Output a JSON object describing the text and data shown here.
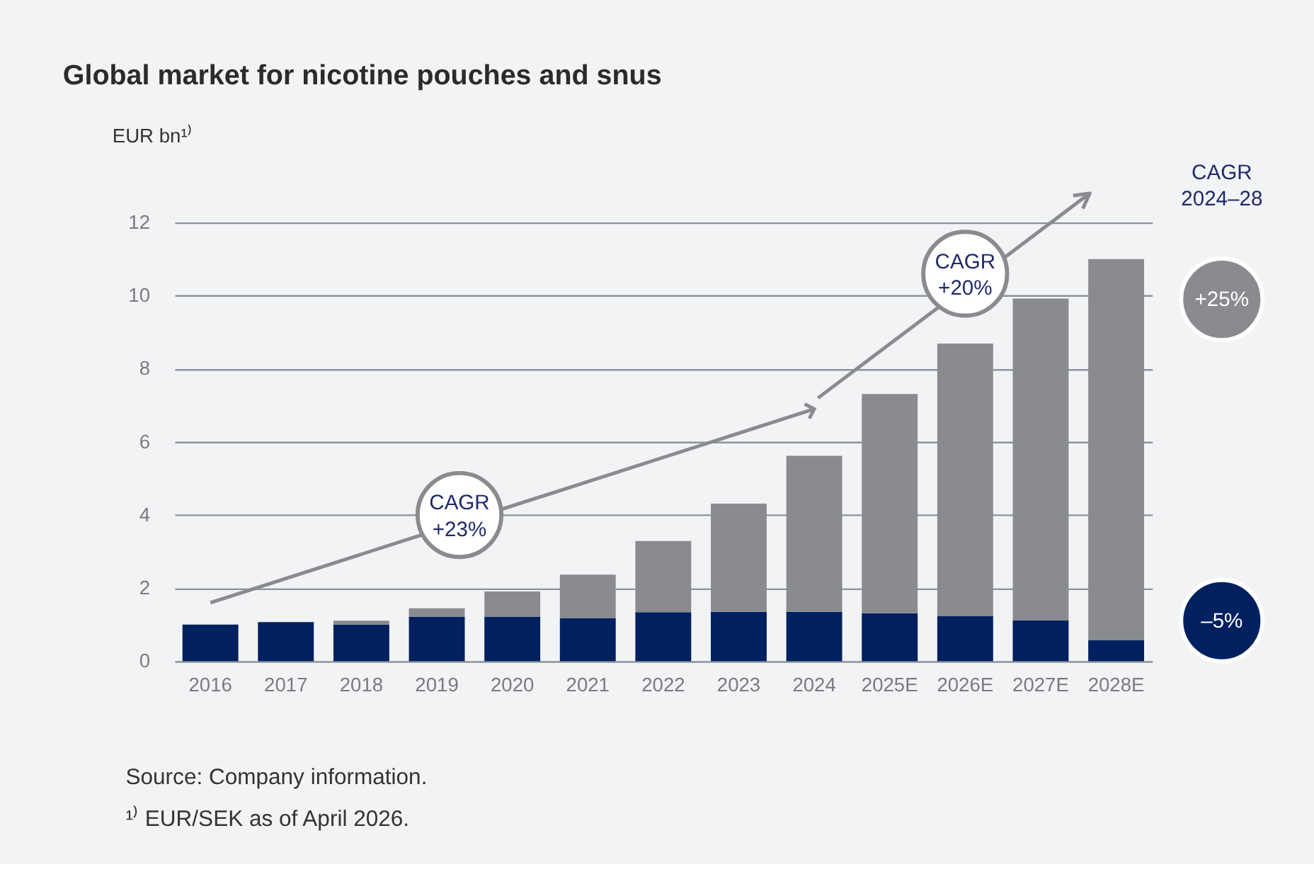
{
  "chart_data": {
    "type": "bar",
    "stacked": true,
    "title": "Global market for nicotine pouches and snus",
    "ylabel": "EUR bn¹⁾",
    "categories": [
      "2016",
      "2017",
      "2018",
      "2019",
      "2020",
      "2021",
      "2022",
      "2023",
      "2024",
      "2025E",
      "2026E",
      "2027E",
      "2028E"
    ],
    "series": [
      {
        "color": "#00205f",
        "values": [
          1.0,
          1.07,
          1.0,
          1.22,
          1.22,
          1.18,
          1.34,
          1.35,
          1.35,
          1.31,
          1.23,
          1.12,
          0.58
        ]
      },
      {
        "color": "#8a8b8e",
        "values": [
          null,
          null,
          0.11,
          0.23,
          0.69,
          1.19,
          1.95,
          2.96,
          4.27,
          6.0,
          7.46,
          8.8,
          10.42
        ]
      },
      {
        "type": "line",
        "color": "#8a8b8e",
        "values": [
          1.6,
          null,
          null,
          null,
          null,
          null,
          null,
          null,
          6.9,
          null,
          null,
          null,
          null
        ]
      }
    ],
    "ylim": [
      0,
      12
    ],
    "yticks": [
      0,
      2,
      4,
      6,
      8,
      10,
      12
    ],
    "grid": "y",
    "annotations": [
      "CAGR +23%",
      "CAGR +20%",
      "CAGR 2024–28",
      "+25%",
      "–5%",
      "Source: Company information.",
      "¹⁾ EUR/SEK as of April 2026."
    ]
  }
}
